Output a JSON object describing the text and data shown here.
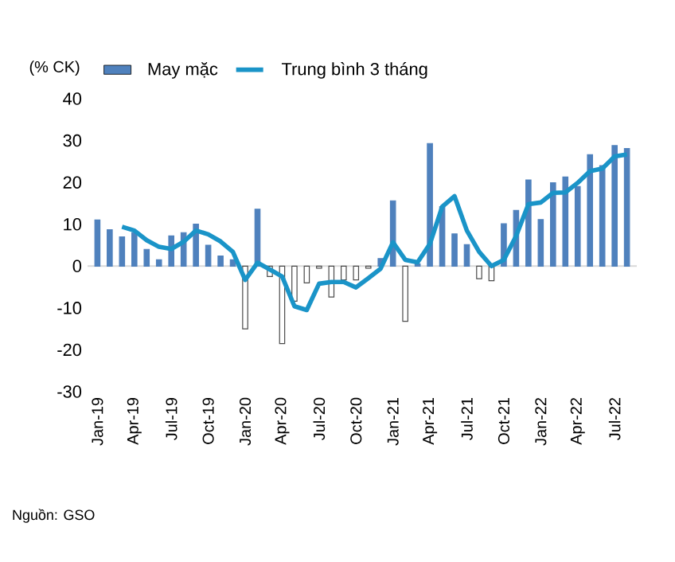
{
  "chart_data": {
    "type": "bar",
    "ylabel": "(% CK)",
    "categories": [
      "Jan-19",
      null,
      null,
      "Apr-19",
      null,
      null,
      "Jul-19",
      null,
      null,
      "Oct-19",
      null,
      null,
      "Jan-20",
      null,
      null,
      "Apr-20",
      null,
      null,
      "Jul-20",
      null,
      null,
      "Oct-20",
      null,
      null,
      "Jan-21",
      null,
      null,
      "Apr-21",
      null,
      null,
      "Jul-21",
      null,
      null,
      "Oct-21",
      null,
      null,
      "Jan-22",
      null,
      null,
      "Apr-22",
      null,
      null,
      "Jul-22",
      null
    ],
    "series": [
      {
        "name": "May mặc",
        "color": "#4f81bd",
        "colors": [
          "#4f81bd",
          "#4f81bd",
          "#4f81bd",
          "#4f81bd",
          "#4f81bd",
          "#4f81bd",
          "#4f81bd",
          "#4f81bd",
          "#4f81bd",
          "#4f81bd",
          "#4f81bd",
          "#4f81bd",
          "#ffffff",
          "#4f81bd",
          "#ffffff",
          "#ffffff",
          "#ffffff",
          "#ffffff",
          "#ffffff",
          "#ffffff",
          "#ffffff",
          "#ffffff",
          "#ffffff",
          "#4f81bd",
          "#4f81bd",
          "#ffffff",
          "#4f81bd",
          "#4f81bd",
          "#4f81bd",
          "#4f81bd",
          "#4f81bd",
          "#ffffff",
          "#ffffff",
          "#4f81bd",
          "#4f81bd",
          "#4f81bd",
          "#4f81bd",
          "#4f81bd",
          "#4f81bd",
          "#4f81bd",
          "#4f81bd",
          "#4f81bd",
          "#4f81bd",
          "#4f81bd"
        ],
        "values": [
          11,
          8.7,
          7,
          8,
          4,
          1.5,
          7.2,
          8,
          10,
          5,
          2.4,
          1.5,
          -15,
          13.6,
          -2.5,
          -18.5,
          -8.4,
          -4,
          -0.5,
          -7.4,
          -3.3,
          -3.3,
          -0.5,
          1.8,
          15.6,
          -13.2,
          0.5,
          29.3,
          14.2,
          7.7,
          5.1,
          -3,
          -3.5,
          10.1,
          13.3,
          20.6,
          11.1,
          19.9,
          21.3,
          19,
          26.6,
          24,
          28.8,
          28.1
        ]
      },
      {
        "name": "Trung bình 3 tháng",
        "type": "line",
        "color": "#1a94c8",
        "values": [
          null,
          null,
          9.4,
          8.5,
          6.2,
          4.6,
          4.1,
          5.8,
          8.5,
          7.6,
          5.9,
          3.4,
          -3.3,
          0.8,
          -0.8,
          -2.5,
          -9.6,
          -10.5,
          -4.2,
          -3.8,
          -3.8,
          -5.1,
          -2.9,
          -0.6,
          5.7,
          1.5,
          0.9,
          5.3,
          14.2,
          16.7,
          8.5,
          3.4,
          0,
          1.5,
          7.2,
          14.8,
          15.2,
          17.5,
          17.6,
          19.9,
          22.7,
          23.3,
          26.2,
          26.7
        ]
      }
    ],
    "ylim": [
      -30,
      40
    ],
    "yticks": [
      -30,
      -20,
      -10,
      0,
      10,
      20,
      30,
      40
    ],
    "legend": "top",
    "ref_lines": [
      {
        "axis": "y",
        "value": 0,
        "color": "#d9d9d9"
      }
    ],
    "line_style": "solid",
    "marker": "none",
    "annotations": [
      "Nguồn: GSO"
    ]
  }
}
